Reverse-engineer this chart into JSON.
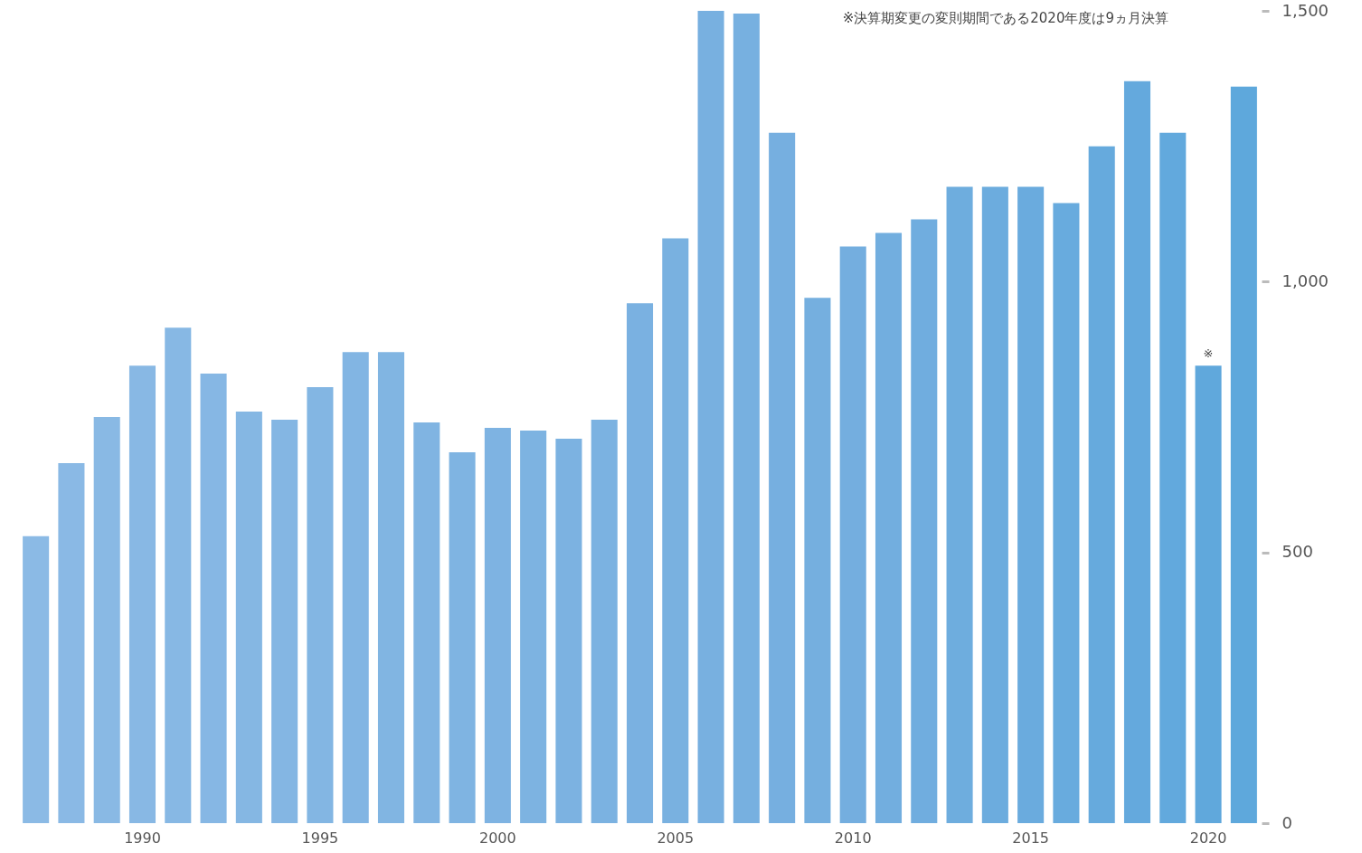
{
  "chart_data": {
    "type": "bar",
    "categories": [
      null,
      null,
      null,
      "1990",
      null,
      null,
      null,
      null,
      "1995",
      null,
      null,
      null,
      null,
      "2000",
      null,
      null,
      null,
      null,
      "2005",
      null,
      null,
      null,
      null,
      "2010",
      null,
      null,
      null,
      null,
      "2015",
      null,
      null,
      null,
      null,
      "2020",
      null
    ],
    "values": [
      530,
      665,
      750,
      845,
      915,
      830,
      760,
      745,
      805,
      870,
      870,
      740,
      685,
      730,
      725,
      710,
      745,
      960,
      1080,
      1500,
      1495,
      1275,
      970,
      1065,
      1090,
      1115,
      1175,
      1175,
      1175,
      1145,
      1250,
      1370,
      1275,
      845,
      1360
    ],
    "colors": [
      "#8bbae5",
      "#8ab9e5",
      "#89b9e4",
      "#88b8e4",
      "#87b8e4",
      "#86b7e4",
      "#85b7e3",
      "#84b6e3",
      "#83b6e3",
      "#82b5e3",
      "#81b5e2",
      "#80b4e2",
      "#7fb4e2",
      "#7eb3e2",
      "#7db3e1",
      "#7cb2e1",
      "#7bb2e1",
      "#7ab1e1",
      "#79b1e0",
      "#78b0e0",
      "#77b0e0",
      "#76afe0",
      "#75afdf",
      "#74aedf",
      "#72aedf",
      "#70addf",
      "#6eadde",
      "#6cacde",
      "#6aabde",
      "#68abde",
      "#66aadd",
      "#64a9dd",
      "#62a9dd",
      "#60a8dc",
      "#5ea8dc"
    ],
    "ylim": [
      0,
      1500
    ],
    "yticks": [
      0,
      500,
      {
        "value": 1000,
        "label": "1,000"
      },
      {
        "value": 1500,
        "label": "1,500"
      }
    ],
    "grid": false,
    "annotations": [
      "※決算期変更の変則期間である2020年度は9ヵ月決算",
      {
        "text": "※",
        "x": "2020",
        "y": 845
      }
    ]
  }
}
